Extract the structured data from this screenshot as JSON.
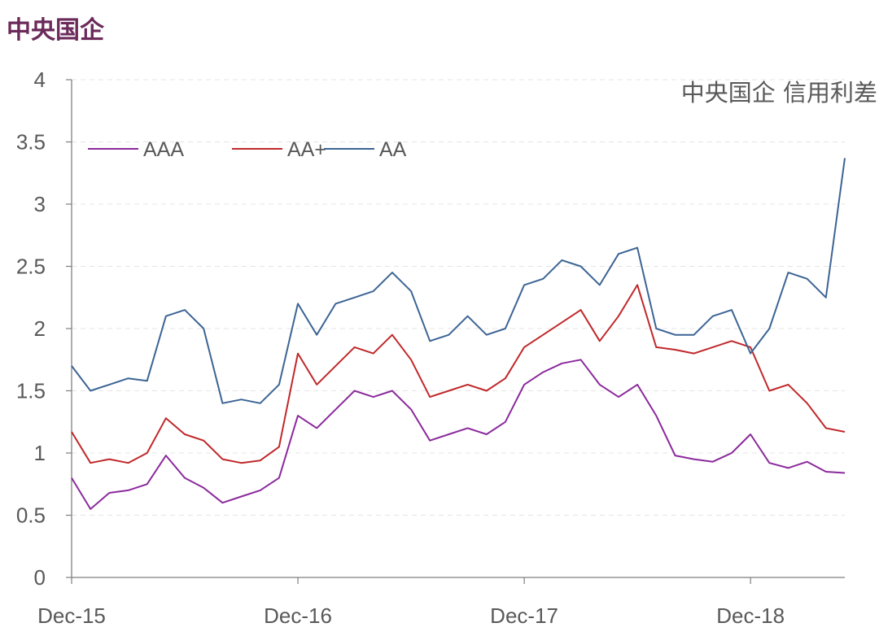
{
  "page_title": "中央国企",
  "chart_data": {
    "type": "line",
    "title": "中央国企 信用利差",
    "xlabel": "",
    "ylabel": "",
    "ylim": [
      0,
      4
    ],
    "y_ticks": [
      "0",
      "0.5",
      "1",
      "1.5",
      "2",
      "2.5",
      "3",
      "3.5",
      "4"
    ],
    "x_tick_labels": [
      "Dec-15",
      "Dec-16",
      "Dec-17",
      "Dec-18"
    ],
    "grid": true,
    "legend_position": "top-left",
    "x": [
      "2015-12",
      "2016-01",
      "2016-02",
      "2016-03",
      "2016-04",
      "2016-05",
      "2016-06",
      "2016-07",
      "2016-08",
      "2016-09",
      "2016-10",
      "2016-11",
      "2016-12",
      "2017-01",
      "2017-02",
      "2017-03",
      "2017-04",
      "2017-05",
      "2017-06",
      "2017-07",
      "2017-08",
      "2017-09",
      "2017-10",
      "2017-11",
      "2017-12",
      "2018-01",
      "2018-02",
      "2018-03",
      "2018-04",
      "2018-05",
      "2018-06",
      "2018-07",
      "2018-08",
      "2018-09",
      "2018-10",
      "2018-11",
      "2018-12",
      "2019-01",
      "2019-02",
      "2019-03",
      "2019-04",
      "2019-05"
    ],
    "series": [
      {
        "name": "AAA",
        "color": "#8b2a9c",
        "values": [
          0.8,
          0.55,
          0.68,
          0.7,
          0.75,
          0.98,
          0.8,
          0.72,
          0.6,
          0.65,
          0.7,
          0.8,
          1.3,
          1.2,
          1.35,
          1.5,
          1.45,
          1.5,
          1.35,
          1.1,
          1.15,
          1.2,
          1.15,
          1.25,
          1.55,
          1.65,
          1.72,
          1.75,
          1.55,
          1.45,
          1.55,
          1.3,
          0.98,
          0.95,
          0.93,
          1.0,
          1.15,
          0.92,
          0.88,
          0.93,
          0.85,
          0.84
        ]
      },
      {
        "name": "AA+",
        "color": "#c0282a",
        "values": [
          1.17,
          0.92,
          0.95,
          0.92,
          1.0,
          1.28,
          1.15,
          1.1,
          0.95,
          0.92,
          0.94,
          1.05,
          1.8,
          1.55,
          1.7,
          1.85,
          1.8,
          1.95,
          1.75,
          1.45,
          1.5,
          1.55,
          1.5,
          1.6,
          1.85,
          1.95,
          2.05,
          2.15,
          1.9,
          2.1,
          2.35,
          1.85,
          1.83,
          1.8,
          1.85,
          1.9,
          1.85,
          1.5,
          1.55,
          1.4,
          1.2,
          1.17
        ]
      },
      {
        "name": "AA",
        "color": "#3c6494",
        "values": [
          1.7,
          1.5,
          1.55,
          1.6,
          1.58,
          2.1,
          2.15,
          2.0,
          1.4,
          1.43,
          1.4,
          1.55,
          2.2,
          1.95,
          2.2,
          2.25,
          2.3,
          2.45,
          2.3,
          1.9,
          1.95,
          2.1,
          1.95,
          2.0,
          2.35,
          2.4,
          2.55,
          2.5,
          2.35,
          2.6,
          2.65,
          2.0,
          1.95,
          1.95,
          2.1,
          2.15,
          1.8,
          2.0,
          2.45,
          2.4,
          2.25,
          3.37
        ]
      }
    ]
  }
}
